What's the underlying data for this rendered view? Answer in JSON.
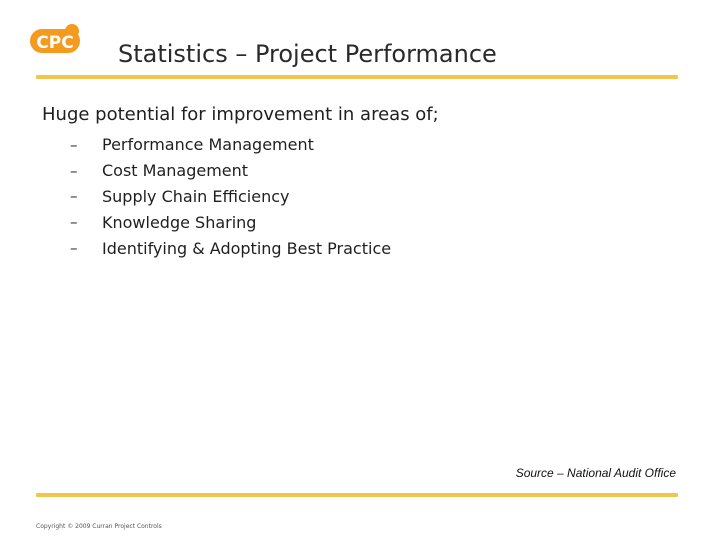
{
  "header": {
    "logo_text": "CPC",
    "title": "Statistics – Project Performance"
  },
  "body": {
    "intro": "Huge potential for improvement in areas of;",
    "bullet_marker": "–",
    "items": [
      "Performance Management",
      "Cost Management",
      "Supply Chain Efficiency",
      "Knowledge Sharing",
      "Identifying & Adopting Best Practice"
    ]
  },
  "footer": {
    "source": "Source – National Audit Office",
    "copyright": "Copyright © 2009 Curran Project Controls"
  },
  "colors": {
    "accent_rule": "#f2c64a",
    "logo_orange": "#f39a1f"
  }
}
